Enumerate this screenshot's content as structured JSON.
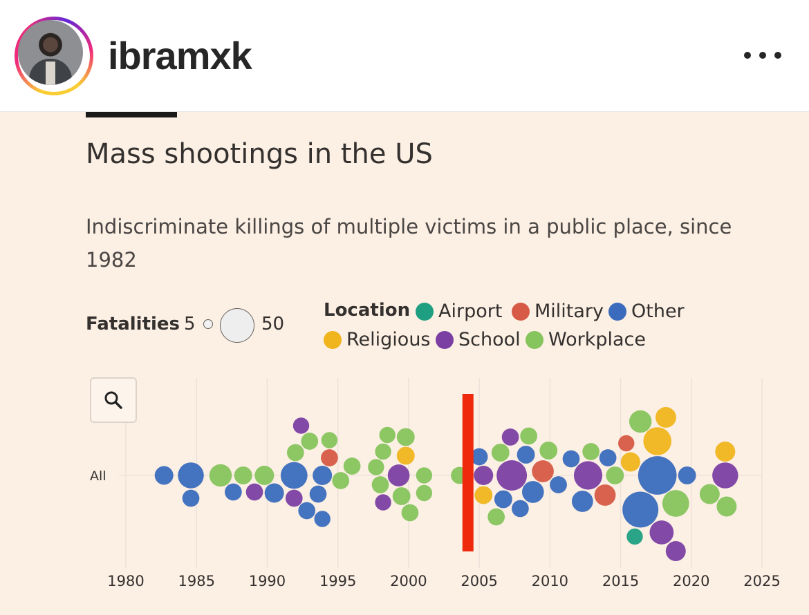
{
  "post_header": {
    "username": "ibramxk",
    "avatar_icon": "profile-photo",
    "more_icon": "more-horizontal-icon"
  },
  "colors": {
    "Airport": "#1e9f82",
    "Military": "#d65a45",
    "Other": "#3a6bbd",
    "Religious": "#f0b41d",
    "School": "#7b3fa3",
    "Workplace": "#86c45d",
    "marker": "#ef2a0c"
  },
  "chart_data": {
    "type": "scatter",
    "subtype": "beeswarm",
    "title": "Mass shootings in the US",
    "subtitle": "Indiscriminate killings of multiple victims in a public place, since 1982",
    "size_legend": {
      "label": "Fatalities",
      "min": "5",
      "max": "50"
    },
    "color_legend": {
      "label": "Location",
      "entries": [
        "Airport",
        "Military",
        "Other",
        "Religious",
        "School",
        "Workplace"
      ]
    },
    "row_label": "All",
    "x_ticks": [
      "1980",
      "1985",
      "1990",
      "1995",
      "2000",
      "2005",
      "2010",
      "2015",
      "2020",
      "2025"
    ],
    "xlim": [
      1980,
      2025
    ],
    "grid": true,
    "highlight": {
      "type": "vertical-line",
      "x": 2004.2
    },
    "approximate_points": [
      {
        "x": 1982.7,
        "cat": "Other",
        "f": 8
      },
      {
        "x": 1984.6,
        "cat": "Other",
        "f": 21
      },
      {
        "x": 1984.6,
        "cat": "Other",
        "f": 6
      },
      {
        "x": 1986.7,
        "cat": "Workplace",
        "f": 14
      },
      {
        "x": 1987.6,
        "cat": "Other",
        "f": 6
      },
      {
        "x": 1988.3,
        "cat": "Workplace",
        "f": 7
      },
      {
        "x": 1989.1,
        "cat": "School",
        "f": 6
      },
      {
        "x": 1989.8,
        "cat": "Workplace",
        "f": 9
      },
      {
        "x": 1990.5,
        "cat": "Other",
        "f": 9
      },
      {
        "x": 1991.9,
        "cat": "Other",
        "f": 23
      },
      {
        "x": 1991.9,
        "cat": "School",
        "f": 6
      },
      {
        "x": 1992.0,
        "cat": "Workplace",
        "f": 6
      },
      {
        "x": 1992.4,
        "cat": "School",
        "f": 5
      },
      {
        "x": 1992.8,
        "cat": "Other",
        "f": 6
      },
      {
        "x": 1993.0,
        "cat": "Workplace",
        "f": 6
      },
      {
        "x": 1993.6,
        "cat": "Other",
        "f": 6
      },
      {
        "x": 1993.9,
        "cat": "Other",
        "f": 9
      },
      {
        "x": 1993.9,
        "cat": "Other",
        "f": 5
      },
      {
        "x": 1994.4,
        "cat": "Military",
        "f": 6
      },
      {
        "x": 1994.4,
        "cat": "Workplace",
        "f": 5
      },
      {
        "x": 1995.2,
        "cat": "Workplace",
        "f": 6
      },
      {
        "x": 1996.0,
        "cat": "Workplace",
        "f": 6
      },
      {
        "x": 1997.7,
        "cat": "Workplace",
        "f": 5
      },
      {
        "x": 1998.0,
        "cat": "Workplace",
        "f": 6
      },
      {
        "x": 1998.2,
        "cat": "Workplace",
        "f": 5
      },
      {
        "x": 1998.2,
        "cat": "School",
        "f": 5
      },
      {
        "x": 1998.5,
        "cat": "Workplace",
        "f": 5
      },
      {
        "x": 1999.3,
        "cat": "School",
        "f": 13
      },
      {
        "x": 1999.5,
        "cat": "Workplace",
        "f": 7
      },
      {
        "x": 1999.8,
        "cat": "Religious",
        "f": 7
      },
      {
        "x": 1999.8,
        "cat": "Workplace",
        "f": 7
      },
      {
        "x": 2000.1,
        "cat": "Workplace",
        "f": 6
      },
      {
        "x": 2001.1,
        "cat": "Workplace",
        "f": 5
      },
      {
        "x": 2001.1,
        "cat": "Workplace",
        "f": 5
      },
      {
        "x": 2003.6,
        "cat": "Workplace",
        "f": 6
      },
      {
        "x": 2005.0,
        "cat": "Other",
        "f": 6
      },
      {
        "x": 2005.3,
        "cat": "School",
        "f": 9
      },
      {
        "x": 2005.3,
        "cat": "Religious",
        "f": 7
      },
      {
        "x": 2006.2,
        "cat": "Workplace",
        "f": 6
      },
      {
        "x": 2006.5,
        "cat": "Workplace",
        "f": 7
      },
      {
        "x": 2006.7,
        "cat": "Other",
        "f": 7
      },
      {
        "x": 2007.3,
        "cat": "School",
        "f": 32
      },
      {
        "x": 2007.2,
        "cat": "School",
        "f": 6
      },
      {
        "x": 2007.9,
        "cat": "Other",
        "f": 6
      },
      {
        "x": 2008.3,
        "cat": "Other",
        "f": 7
      },
      {
        "x": 2008.5,
        "cat": "Workplace",
        "f": 6
      },
      {
        "x": 2008.8,
        "cat": "Other",
        "f": 13
      },
      {
        "x": 2009.5,
        "cat": "Military",
        "f": 13
      },
      {
        "x": 2009.9,
        "cat": "Workplace",
        "f": 7
      },
      {
        "x": 2010.6,
        "cat": "Other",
        "f": 6
      },
      {
        "x": 2011.5,
        "cat": "Other",
        "f": 6
      },
      {
        "x": 2012.7,
        "cat": "School",
        "f": 27
      },
      {
        "x": 2012.3,
        "cat": "Other",
        "f": 12
      },
      {
        "x": 2012.9,
        "cat": "Workplace",
        "f": 6
      },
      {
        "x": 2013.9,
        "cat": "Military",
        "f": 12
      },
      {
        "x": 2014.1,
        "cat": "Other",
        "f": 6
      },
      {
        "x": 2014.6,
        "cat": "Workplace",
        "f": 7
      },
      {
        "x": 2015.7,
        "cat": "Religious",
        "f": 9
      },
      {
        "x": 2016.4,
        "cat": "Other",
        "f": 49
      },
      {
        "x": 2016.4,
        "cat": "Workplace",
        "f": 14
      },
      {
        "x": 2017.6,
        "cat": "Other",
        "f": 58
      },
      {
        "x": 2017.6,
        "cat": "Religious",
        "f": 26
      },
      {
        "x": 2017.9,
        "cat": "School",
        "f": 17
      },
      {
        "x": 2018.2,
        "cat": "Religious",
        "f": 11
      },
      {
        "x": 2018.9,
        "cat": "Workplace",
        "f": 23
      },
      {
        "x": 2018.9,
        "cat": "School",
        "f": 10
      },
      {
        "x": 2019.7,
        "cat": "Other",
        "f": 7
      },
      {
        "x": 2021.3,
        "cat": "Workplace",
        "f": 10
      },
      {
        "x": 2022.4,
        "cat": "School",
        "f": 21
      },
      {
        "x": 2022.4,
        "cat": "Religious",
        "f": 10
      },
      {
        "x": 2022.5,
        "cat": "Workplace",
        "f": 10
      },
      {
        "x": 2016.0,
        "cat": "Airport",
        "f": 5
      },
      {
        "x": 2015.4,
        "cat": "Military",
        "f": 5
      }
    ]
  }
}
